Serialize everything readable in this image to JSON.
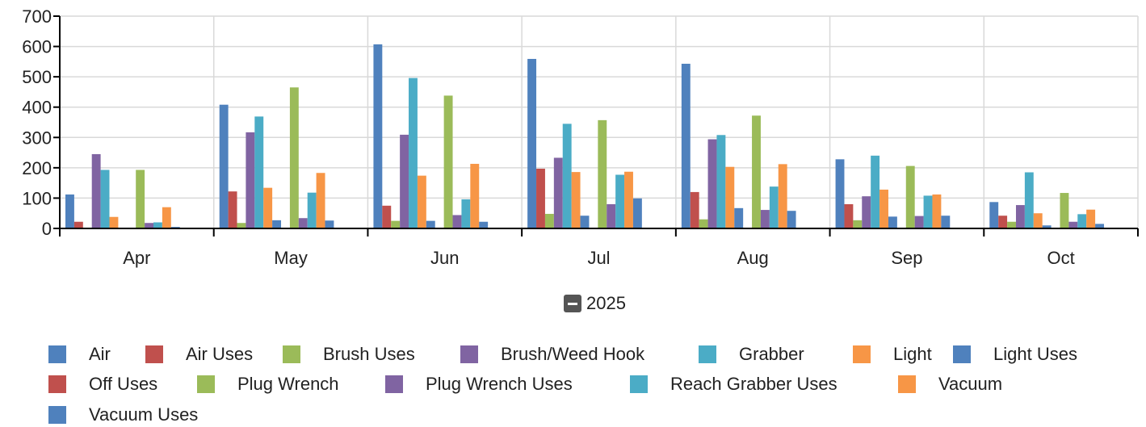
{
  "chart_data": {
    "type": "bar",
    "ylim": [
      0,
      700
    ],
    "yticks": [
      0,
      100,
      200,
      300,
      400,
      500,
      600,
      700
    ],
    "categories": [
      "Apr",
      "May",
      "Jun",
      "Jul",
      "Aug",
      "Sep",
      "Oct"
    ],
    "group_label": "2025",
    "series": [
      {
        "name": "Air",
        "color": "#4f81bd",
        "values": [
          112,
          408,
          607,
          559,
          543,
          228,
          87
        ]
      },
      {
        "name": "Air Uses",
        "color": "#c0504d",
        "values": [
          22,
          122,
          75,
          197,
          120,
          80,
          42
        ]
      },
      {
        "name": "Brush Uses",
        "color": "#9bbb59",
        "values": [
          0,
          18,
          25,
          48,
          30,
          27,
          22
        ]
      },
      {
        "name": "Brush/Weed Hook",
        "color": "#8064a2",
        "values": [
          245,
          317,
          309,
          233,
          294,
          106,
          77
        ]
      },
      {
        "name": "Grabber",
        "color": "#4bacc6",
        "values": [
          193,
          369,
          496,
          345,
          308,
          240,
          185
        ]
      },
      {
        "name": "Light",
        "color": "#f79646",
        "values": [
          38,
          134,
          174,
          186,
          203,
          128,
          50
        ]
      },
      {
        "name": "Light Uses",
        "color": "#4f81bd",
        "values": [
          0,
          27,
          25,
          42,
          67,
          39,
          10
        ]
      },
      {
        "name": "Off Uses",
        "color": "#c0504d",
        "values": [
          0,
          0,
          0,
          0,
          0,
          0,
          0
        ]
      },
      {
        "name": "Plug Wrench",
        "color": "#9bbb59",
        "values": [
          193,
          465,
          438,
          357,
          372,
          206,
          117
        ]
      },
      {
        "name": "Plug Wrench Uses",
        "color": "#8064a2",
        "values": [
          18,
          34,
          44,
          80,
          61,
          41,
          22
        ]
      },
      {
        "name": "Reach Grabber Uses",
        "color": "#4bacc6",
        "values": [
          20,
          118,
          96,
          177,
          138,
          108,
          47
        ]
      },
      {
        "name": "Vacuum",
        "color": "#f79646",
        "values": [
          70,
          183,
          213,
          187,
          212,
          112,
          62
        ]
      },
      {
        "name": "Vacuum Uses",
        "color": "#4f81bd",
        "values": [
          5,
          26,
          22,
          99,
          58,
          42,
          15
        ]
      }
    ]
  }
}
